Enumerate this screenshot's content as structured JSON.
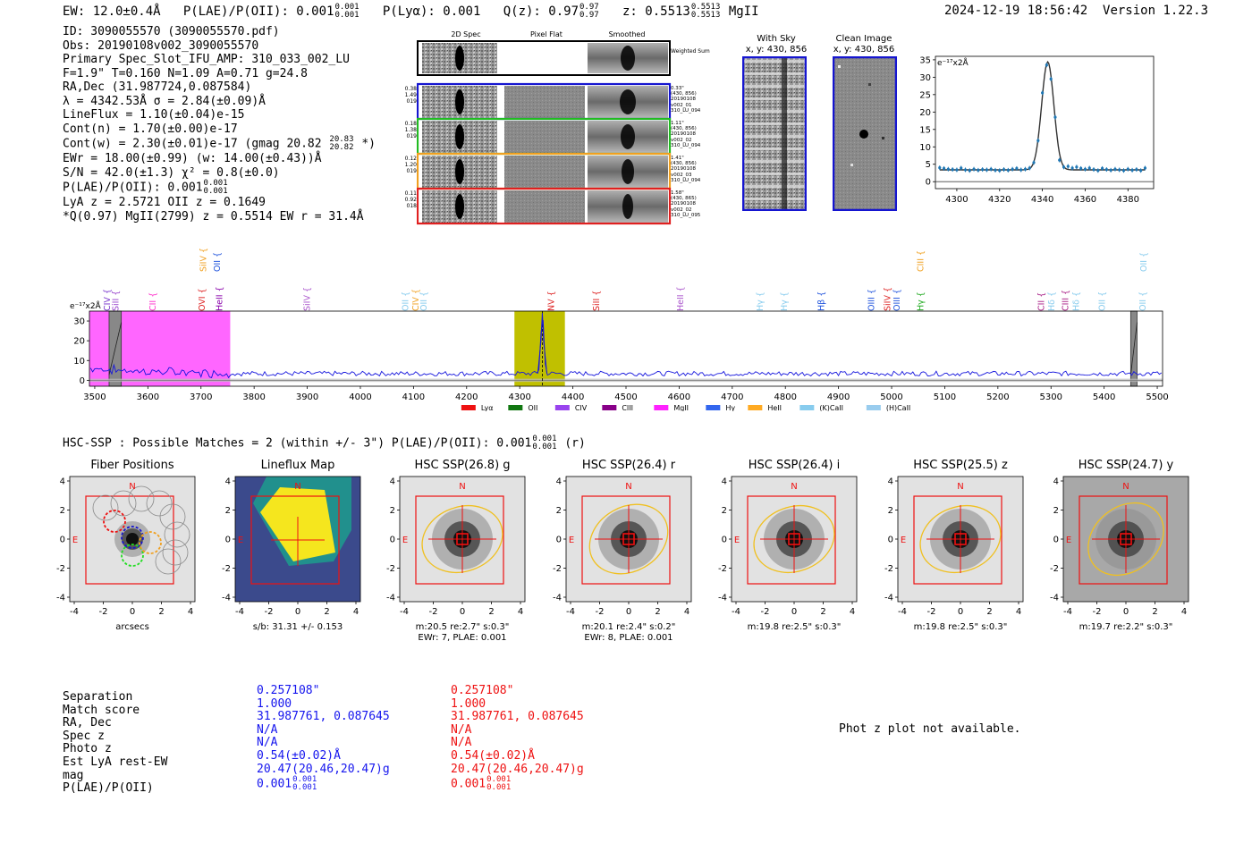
{
  "header": {
    "ew": "EW: 12.0±0.4Å",
    "plae_label": "P(LAE)/P(OII): 0.001",
    "plae_hi": "0.001",
    "plae_lo": "0.001",
    "plya": "P(Lyα): 0.001",
    "qz_label": "Q(z): 0.97",
    "qz_hi": "0.97",
    "qz_lo": "0.97",
    "z_label": "z: 0.5513",
    "z_hi": "0.5513",
    "z_lo": "0.5513",
    "z_line": "MgII",
    "timestamp": "2024-12-19 18:56:42",
    "version": "Version 1.22.3"
  },
  "info": {
    "id": "ID: 3090055570 (3090055570.pdf)",
    "obs": "Obs: 20190108v002_3090055570",
    "primary": "Primary Spec_Slot_IFU_AMP: 310_033_002_LU",
    "params": "F=1.9\"  T=0.160  N=1.09  A=0.71  g=24.8",
    "radec": "RA,Dec (31.987724,0.087584)",
    "lambda": "λ = 4342.53Å  σ = 2.84(±0.09)Å",
    "lineflux": "LineFlux = 1.10(±0.04)e-15",
    "contn": "Cont(n) = 1.70(±0.00)e-17",
    "contw": "Cont(w) = 2.30(±0.01)e-17 (gmag 20.82",
    "contw_hi": "20.83",
    "contw_lo": "20.82",
    "contw_end": "*)",
    "ewr": "EWr = 18.00(±0.99) (w: 14.00(±0.43))Å",
    "sn": "S/N = 42.0(±1.3)  χ² = 0.8(±0.0)",
    "plae": "P(LAE)/P(OII): 0.001",
    "plae_hi": "0.001",
    "plae_lo": "0.001",
    "lya": "LyA z = 2.5721   OII z = 0.1649",
    "q": "*Q(0.97) MgII(2799) z = 0.5514  EW r = 31.4Å"
  },
  "cutouts": {
    "col_titles": [
      "2D Spec",
      "Pixel Flat",
      "Smoothed"
    ],
    "weighted_sum": "Weighted Sum",
    "rows": [
      {
        "left": [
          "0.38",
          "1.49",
          "019"
        ],
        "right": [
          "0.33\"",
          "(430, 856)",
          "20190108",
          "v002_01",
          "310_LU_094"
        ],
        "color": "#1515d0"
      },
      {
        "left": [
          "0.18",
          "1.38",
          "019"
        ],
        "right": [
          "1.11\"",
          "(430, 856)",
          "20190108",
          "v002_02",
          "310_LU_094"
        ],
        "color": "#22bb22"
      },
      {
        "left": [
          "0.12",
          "1.20",
          "019"
        ],
        "right": [
          "1.41\"",
          "(430, 856)",
          "20190108",
          "v002_03",
          "310_LU_094"
        ],
        "color": "#f0a020"
      },
      {
        "left": [
          "0.11",
          "0.92",
          "018"
        ],
        "right": [
          "1.58\"",
          "(430, 865)",
          "20190108",
          "v002_02",
          "310_LU_095"
        ],
        "color": "#e02020"
      }
    ]
  },
  "sky": {
    "with_sky_title": "With Sky",
    "with_sky_xy": "x, y: 430, 856",
    "clean_title": "Clean Image",
    "clean_xy": "x, y: 430, 856"
  },
  "chart_data": [
    {
      "type": "line",
      "title": "Emission line fit",
      "ylabel": "e⁻¹⁷x2Å",
      "xlim": [
        4290,
        4392
      ],
      "ylim": [
        -2,
        36
      ],
      "xticks": [
        4300,
        4320,
        4340,
        4360,
        4380
      ],
      "yticks": [
        0,
        5,
        10,
        15,
        20,
        25,
        30,
        35
      ],
      "fit": {
        "center": 4342.5,
        "sigma": 2.84,
        "amplitude": 31,
        "continuum": 3.4
      },
      "points_x": [
        4292,
        4294,
        4296,
        4298,
        4300,
        4302,
        4304,
        4306,
        4308,
        4310,
        4312,
        4314,
        4316,
        4318,
        4320,
        4322,
        4324,
        4326,
        4328,
        4330,
        4332,
        4334,
        4336,
        4338,
        4340,
        4342,
        4344,
        4346,
        4348,
        4350,
        4352,
        4354,
        4356,
        4358,
        4360,
        4362,
        4364,
        4366,
        4368,
        4370,
        4372,
        4374,
        4376,
        4378,
        4380,
        4382,
        4384,
        4386,
        4388
      ],
      "points_y": [
        4.0,
        3.8,
        3.6,
        3.5,
        3.4,
        3.9,
        3.4,
        3.2,
        3.6,
        3.3,
        3.5,
        3.4,
        3.6,
        3.3,
        3.2,
        3.5,
        3.3,
        3.6,
        3.8,
        3.4,
        3.6,
        3.9,
        5.5,
        11.8,
        25.5,
        33.5,
        29.5,
        18.5,
        6.2,
        4.2,
        4.4,
        3.9,
        4.2,
        3.8,
        3.6,
        3.9,
        3.5,
        3.2,
        3.8,
        3.5,
        3.3,
        3.6,
        3.4,
        3.2,
        3.6,
        3.3,
        3.5,
        3.2,
        3.9
      ]
    },
    {
      "type": "line",
      "title": "1D spectrum",
      "ylabel": "e⁻¹⁷x2Å",
      "xlim": [
        3490,
        5510
      ],
      "ylim": [
        -3,
        35
      ],
      "xticks": [
        3500,
        3600,
        3700,
        3800,
        3900,
        4000,
        4100,
        4200,
        4300,
        4400,
        4500,
        4600,
        4700,
        4800,
        4900,
        5000,
        5100,
        5200,
        5300,
        5400,
        5500
      ],
      "yticks": [
        0,
        10,
        20,
        30
      ],
      "regions": [
        {
          "from": 3490,
          "to": 3755,
          "color": "#ff66ff"
        },
        {
          "from": 4290,
          "to": 4385,
          "color": "#c0c000"
        },
        {
          "from": 3527,
          "to": 3550,
          "color": "#888888"
        },
        {
          "from": 5450,
          "to": 5462,
          "color": "#888888"
        }
      ],
      "line_marker": 4342.5,
      "line_labels_upper": [
        {
          "text": "SiIV",
          "x": 3703,
          "color": "#f0a020"
        },
        {
          "text": "OII",
          "x": 3729,
          "color": "#2255dd"
        },
        {
          "text": "CIII",
          "x": 5053,
          "color": "#f0a020"
        },
        {
          "text": "OII",
          "x": 5473,
          "color": "#88ccee"
        }
      ],
      "line_labels_lower": [
        {
          "text": "CIV",
          "x": 3522,
          "color": "#7733cc"
        },
        {
          "text": "SiII",
          "x": 3538,
          "color": "#9944cc"
        },
        {
          "text": "CII",
          "x": 3608,
          "color": "#ff33cc"
        },
        {
          "text": "OVI",
          "x": 3700,
          "color": "#dd2222"
        },
        {
          "text": "HeII",
          "x": 3733,
          "color": "#8800aa"
        },
        {
          "text": "SiIV",
          "x": 3898,
          "color": "#aa55cc"
        },
        {
          "text": "OII",
          "x": 4083,
          "color": "#88ccee"
        },
        {
          "text": "CIV",
          "x": 4103,
          "color": "#f0a020"
        },
        {
          "text": "OII",
          "x": 4118,
          "color": "#88ccee"
        },
        {
          "text": "NV",
          "x": 4358,
          "color": "#dd2222"
        },
        {
          "text": "SiII",
          "x": 4443,
          "color": "#dd2222"
        },
        {
          "text": "HeII",
          "x": 4601,
          "color": "#aa55cc"
        },
        {
          "text": "Hγ",
          "x": 4751,
          "color": "#88ccee"
        },
        {
          "text": "Hγ",
          "x": 4796,
          "color": "#88ccee"
        },
        {
          "text": "Hβ",
          "x": 4866,
          "color": "#2255dd"
        },
        {
          "text": "OIII",
          "x": 4960,
          "color": "#2255dd"
        },
        {
          "text": "SiIV",
          "x": 4991,
          "color": "#dd2222"
        },
        {
          "text": "OIII",
          "x": 5008,
          "color": "#2255dd"
        },
        {
          "text": "Hγ",
          "x": 5053,
          "color": "#22aa22"
        },
        {
          "text": "CII",
          "x": 5280,
          "color": "#aa2288"
        },
        {
          "text": "Hδ",
          "x": 5300,
          "color": "#88ccee"
        },
        {
          "text": "CIII",
          "x": 5326,
          "color": "#aa2288"
        },
        {
          "text": "Hδ",
          "x": 5346,
          "color": "#88ccee"
        },
        {
          "text": "OII",
          "x": 5395,
          "color": "#88ccee"
        },
        {
          "text": "OII",
          "x": 5471,
          "color": "#88ccee"
        }
      ],
      "legend": [
        {
          "name": "Lyα",
          "color": "#ee1111"
        },
        {
          "name": "OII",
          "color": "#117711"
        },
        {
          "name": "CIV",
          "color": "#9944ee"
        },
        {
          "name": "CIII",
          "color": "#880088"
        },
        {
          "name": "MgII",
          "color": "#ff22ff"
        },
        {
          "name": "Hγ",
          "color": "#3366ee"
        },
        {
          "name": "HeII",
          "color": "#ffaa22"
        },
        {
          "name": "(K)CaII",
          "color": "#88ccee"
        },
        {
          "name": "(H)CaII",
          "color": "#99ccee"
        }
      ]
    }
  ],
  "hsc": {
    "title": "HSC-SSP : Possible Matches = 2 (within +/- 3\")  P(LAE)/P(OII): 0.001",
    "title_hi": "0.001",
    "title_lo": "0.001",
    "title_end": "(r)",
    "panels": [
      {
        "title": "Fiber Positions",
        "cap1": "arcsecs",
        "cap2": ""
      },
      {
        "title": "Lineflux Map",
        "cap1": "s/b: 31.31 +/- 0.153",
        "cap2": ""
      },
      {
        "title": "HSC SSP(26.8) g",
        "cap1": "m:20.5  re:2.7\"  s:0.3\"",
        "cap2": "EWr: 7, PLAE: 0.001"
      },
      {
        "title": "HSC SSP(26.4) r",
        "cap1": "m:20.1  re:2.4\"  s:0.2\"",
        "cap2": "EWr: 8, PLAE: 0.001"
      },
      {
        "title": "HSC SSP(26.4) i",
        "cap1": "m:19.8  re:2.5\"  s:0.3\"",
        "cap2": ""
      },
      {
        "title": "HSC SSP(25.5) z",
        "cap1": "m:19.8  re:2.5\"  s:0.3\"",
        "cap2": ""
      },
      {
        "title": "HSC SSP(24.7) y",
        "cap1": "m:19.7  re:2.2\"  s:0.3\"",
        "cap2": ""
      }
    ],
    "axis_ticks": [
      "-4",
      "-2",
      "0",
      "2",
      "4"
    ],
    "compass_n": "N",
    "compass_e": "E"
  },
  "match_table": {
    "labels": [
      "Separation",
      "Match score",
      "RA, Dec",
      "Spec z",
      "Photo z",
      "Est LyA rest-EW",
      "mag",
      "P(LAE)/P(OII)"
    ],
    "blue": [
      "0.257108\"",
      "1.000",
      "31.987761, 0.087645",
      "N/A",
      "N/A",
      "0.54(±0.02)Å",
      "20.47(20.46,20.47)g",
      "0.001"
    ],
    "red": [
      "0.257108\"",
      "1.000",
      "31.987761, 0.087645",
      "N/A",
      "N/A",
      "0.54(±0.02)Å",
      "20.47(20.46,20.47)g",
      "0.001"
    ],
    "plae_hi": "0.001",
    "plae_lo": "0.001",
    "blue_color": "#1515ee",
    "red_color": "#ee1111"
  },
  "photz_note": "Phot z plot not available."
}
